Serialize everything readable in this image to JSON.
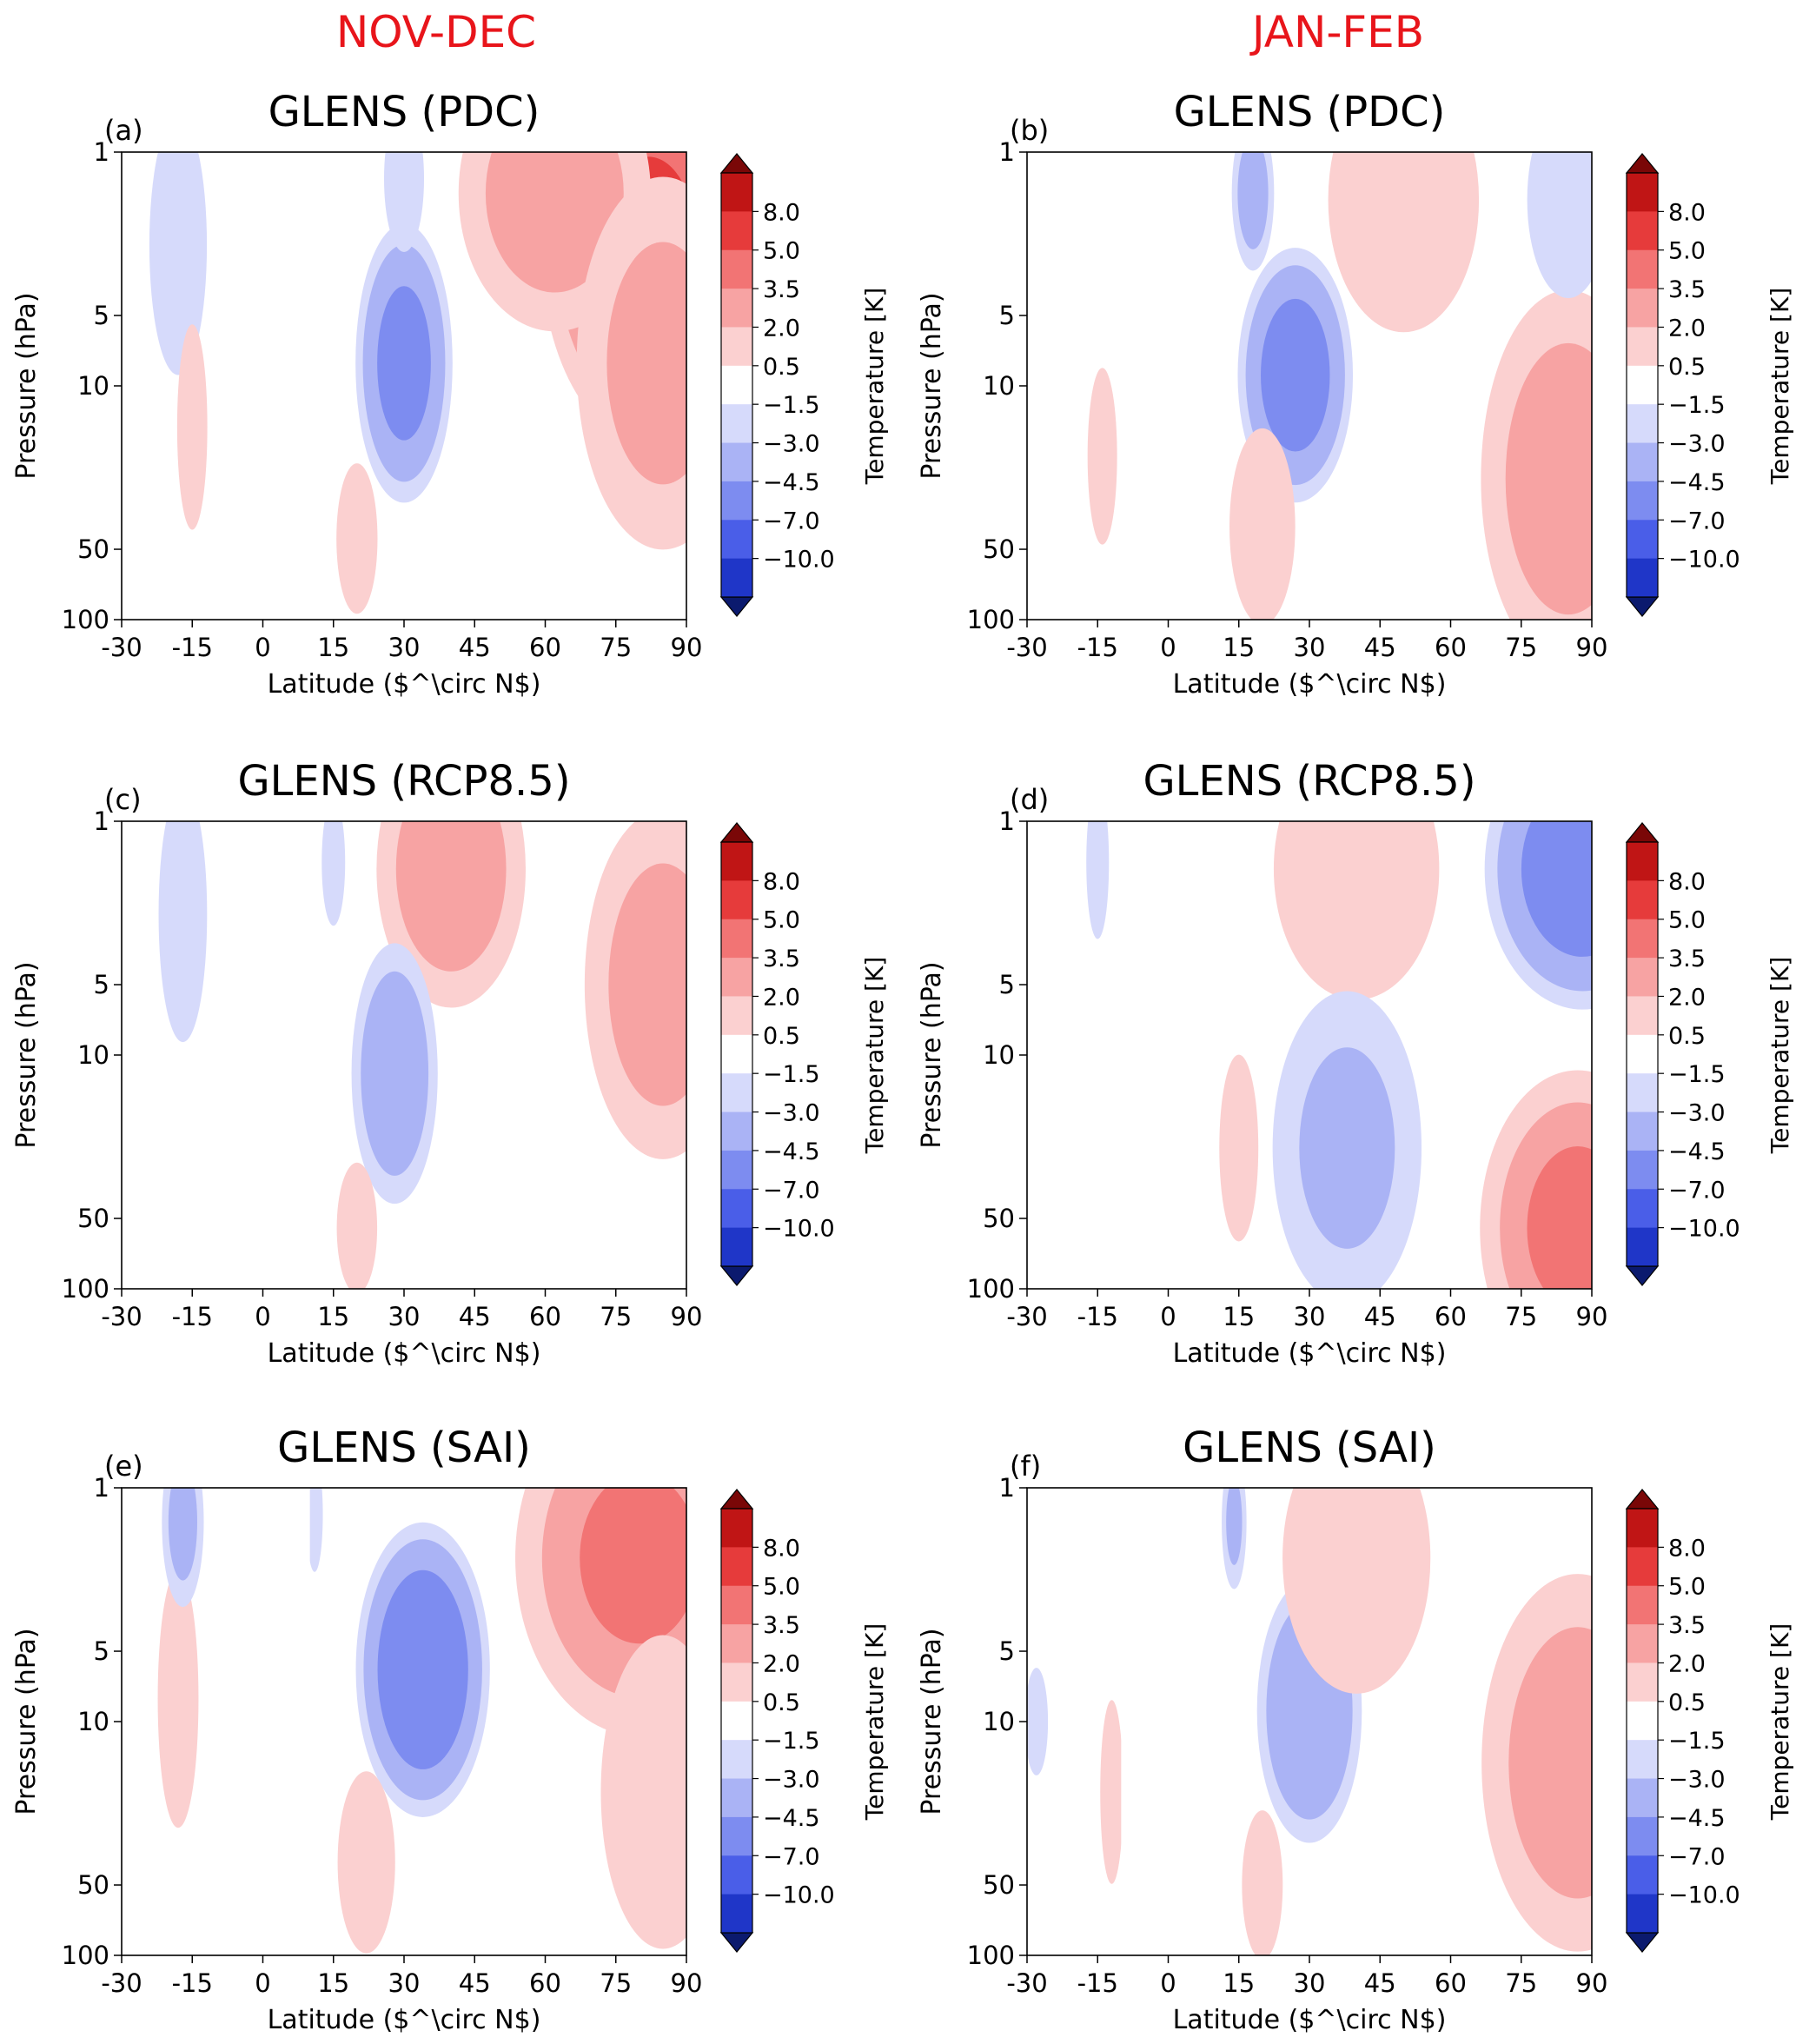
{
  "column_titles": [
    "NOV-DEC",
    "JAN-FEB"
  ],
  "colorbar": {
    "label": "Temperature [K]",
    "ticks": [
      "8.0",
      "5.0",
      "3.5",
      "2.0",
      "0.5",
      "−1.5",
      "−3.0",
      "−4.5",
      "−7.0",
      "−10.0"
    ],
    "colors": [
      "#0b1a6e",
      "#1f36c8",
      "#4a5ee8",
      "#7d8cf0",
      "#aab3f5",
      "#d6dafb",
      "#ffffff",
      "#fbd0d0",
      "#f7a3a3",
      "#f27474",
      "#e63b3b",
      "#c01515",
      "#7a0707"
    ]
  },
  "chart_data": [
    {
      "panel": "(a)",
      "title": "GLENS (PDC)",
      "type": "heatmap",
      "xlabel": "Latitude ($^\\circ N$)",
      "ylabel": "Pressure (hPa)",
      "x_ticks": [
        "-30",
        "-15",
        "0",
        "15",
        "30",
        "45",
        "60",
        "75",
        "90"
      ],
      "y_ticks": [
        "1",
        "5",
        "10",
        "50",
        "100"
      ],
      "xlim": [
        -30,
        90
      ],
      "ylim": [
        100,
        1
      ],
      "yscale": "log",
      "features": [
        {
          "kind": "anomaly",
          "lat": 82,
          "p": 2.5,
          "value": 5.5,
          "rx": 24,
          "ry": 2.6
        },
        {
          "kind": "anomaly",
          "lat": 62,
          "p": 1.5,
          "value": 3.0,
          "rx": 22,
          "ry": 1.5
        },
        {
          "kind": "anomaly",
          "lat": 85,
          "p": 8,
          "value": 2.5,
          "rx": 20,
          "ry": 2.5
        },
        {
          "kind": "anomaly",
          "lat": 30,
          "p": 8,
          "value": -3.5,
          "rx": 11,
          "ry": 1.5
        },
        {
          "kind": "anomaly",
          "lat": -18,
          "p": 2.5,
          "value": -1.5,
          "rx": 7,
          "ry": 1.5
        },
        {
          "kind": "anomaly",
          "lat": 20,
          "p": 45,
          "value": 1.5,
          "rx": 5,
          "ry": 0.7
        },
        {
          "kind": "anomaly",
          "lat": -15,
          "p": 15,
          "value": 0.8,
          "rx": 4,
          "ry": 1.2
        },
        {
          "kind": "anomaly",
          "lat": 30,
          "p": 1.3,
          "value": -1.2,
          "rx": 5,
          "ry": 0.7
        }
      ]
    },
    {
      "panel": "(b)",
      "title": "GLENS (PDC)",
      "type": "heatmap",
      "xlabel": "Latitude ($^\\circ N$)",
      "ylabel": "Pressure (hPa)",
      "x_ticks": [
        "-30",
        "-15",
        "0",
        "15",
        "30",
        "45",
        "60",
        "75",
        "90"
      ],
      "y_ticks": [
        "1",
        "5",
        "10",
        "50",
        "100"
      ],
      "xlim": [
        -30,
        90
      ],
      "ylim": [
        100,
        1
      ],
      "yscale": "log",
      "features": [
        {
          "kind": "anomaly",
          "lat": 27,
          "p": 9,
          "value": -3.8,
          "rx": 13,
          "ry": 1.3
        },
        {
          "kind": "anomaly",
          "lat": 85,
          "p": 25,
          "value": 3.0,
          "rx": 20,
          "ry": 2.5
        },
        {
          "kind": "anomaly",
          "lat": 50,
          "p": 1.6,
          "value": 1.8,
          "rx": 18,
          "ry": 1.5
        },
        {
          "kind": "anomaly",
          "lat": 85,
          "p": 1.6,
          "value": -1.5,
          "rx": 10,
          "ry": 1.0
        },
        {
          "kind": "anomaly",
          "lat": 18,
          "p": 1.5,
          "value": -2.0,
          "rx": 5,
          "ry": 0.7
        },
        {
          "kind": "anomaly",
          "lat": 20,
          "p": 40,
          "value": 1.5,
          "rx": 8,
          "ry": 1.0
        },
        {
          "kind": "anomaly",
          "lat": -14,
          "p": 20,
          "value": 0.7,
          "rx": 4,
          "ry": 1.0
        }
      ]
    },
    {
      "panel": "(c)",
      "title": "GLENS (RCP8.5)",
      "type": "heatmap",
      "xlabel": "Latitude ($^\\circ N$)",
      "ylabel": "Pressure (hPa)",
      "x_ticks": [
        "-30",
        "-15",
        "0",
        "15",
        "30",
        "45",
        "60",
        "75",
        "90"
      ],
      "y_ticks": [
        "1",
        "5",
        "10",
        "50",
        "100"
      ],
      "xlim": [
        -30,
        90
      ],
      "ylim": [
        100,
        1
      ],
      "yscale": "log",
      "features": [
        {
          "kind": "anomaly",
          "lat": 85,
          "p": 5,
          "value": 2.8,
          "rx": 18,
          "ry": 2.2
        },
        {
          "kind": "anomaly",
          "lat": 40,
          "p": 1.6,
          "value": 3.2,
          "rx": 17,
          "ry": 1.5
        },
        {
          "kind": "anomaly",
          "lat": 28,
          "p": 12,
          "value": -2.5,
          "rx": 10,
          "ry": 1.4
        },
        {
          "kind": "anomaly",
          "lat": -17,
          "p": 2.5,
          "value": -1.3,
          "rx": 6,
          "ry": 1.5
        },
        {
          "kind": "anomaly",
          "lat": 20,
          "p": 55,
          "value": 1.3,
          "rx": 5,
          "ry": 0.6
        },
        {
          "kind": "anomaly",
          "lat": 15,
          "p": 1.5,
          "value": -1.0,
          "rx": 3,
          "ry": 0.6
        }
      ]
    },
    {
      "panel": "(d)",
      "title": "GLENS (RCP8.5)",
      "type": "heatmap",
      "xlabel": "Latitude ($^\\circ N$)",
      "ylabel": "Pressure (hPa)",
      "x_ticks": [
        "-30",
        "-15",
        "0",
        "15",
        "30",
        "45",
        "60",
        "75",
        "90"
      ],
      "y_ticks": [
        "1",
        "5",
        "10",
        "50",
        "100"
      ],
      "xlim": [
        -30,
        90
      ],
      "ylim": [
        100,
        1
      ],
      "yscale": "log",
      "features": [
        {
          "kind": "anomaly",
          "lat": 88,
          "p": 1.6,
          "value": -4.0,
          "rx": 22,
          "ry": 1.5
        },
        {
          "kind": "anomaly",
          "lat": 87,
          "p": 55,
          "value": 4.0,
          "rx": 22,
          "ry": 1.8
        },
        {
          "kind": "anomaly",
          "lat": 40,
          "p": 1.6,
          "value": 1.6,
          "rx": 20,
          "ry": 1.5
        },
        {
          "kind": "anomaly",
          "lat": 38,
          "p": 25,
          "value": -1.6,
          "rx": 18,
          "ry": 2.0
        },
        {
          "kind": "anomaly",
          "lat": 15,
          "p": 25,
          "value": 1.0,
          "rx": 5,
          "ry": 1.0
        },
        {
          "kind": "anomaly",
          "lat": -15,
          "p": 1.5,
          "value": -0.8,
          "rx": 3,
          "ry": 0.8
        }
      ]
    },
    {
      "panel": "(e)",
      "title": "GLENS (SAI)",
      "type": "heatmap",
      "xlabel": "Latitude ($^\\circ N$)",
      "ylabel": "Pressure (hPa)",
      "x_ticks": [
        "-30",
        "-15",
        "0",
        "15",
        "30",
        "45",
        "60",
        "75",
        "90"
      ],
      "y_ticks": [
        "1",
        "5",
        "10",
        "50",
        "100"
      ],
      "xlim": [
        -30,
        90
      ],
      "ylim": [
        100,
        1
      ],
      "yscale": "log",
      "features": [
        {
          "kind": "anomaly",
          "lat": 34,
          "p": 6,
          "value": -4.5,
          "rx": 15,
          "ry": 1.6
        },
        {
          "kind": "anomaly",
          "lat": 80,
          "p": 2,
          "value": 3.8,
          "rx": 28,
          "ry": 2.2
        },
        {
          "kind": "anomaly",
          "lat": 85,
          "p": 20,
          "value": 1.6,
          "rx": 15,
          "ry": 2.0
        },
        {
          "kind": "anomaly",
          "lat": -18,
          "p": 8,
          "value": 1.4,
          "rx": 5,
          "ry": 1.5
        },
        {
          "kind": "anomaly",
          "lat": 22,
          "p": 40,
          "value": 1.5,
          "rx": 7,
          "ry": 0.9
        },
        {
          "kind": "anomaly",
          "lat": -17,
          "p": 1.4,
          "value": -1.8,
          "rx": 5,
          "ry": 0.8
        },
        {
          "kind": "anomaly",
          "lat": 11,
          "p": 1.3,
          "value": -1.5,
          "rx": 2,
          "ry": 0.5
        }
      ]
    },
    {
      "panel": "(f)",
      "title": "GLENS (SAI)",
      "type": "heatmap",
      "xlabel": "Latitude ($^\\circ N$)",
      "ylabel": "Pressure (hPa)",
      "x_ticks": [
        "-30",
        "-15",
        "0",
        "15",
        "30",
        "45",
        "60",
        "75",
        "90"
      ],
      "y_ticks": [
        "1",
        "5",
        "10",
        "50",
        "100"
      ],
      "xlim": [
        -30,
        90
      ],
      "ylim": [
        100,
        1
      ],
      "yscale": "log",
      "features": [
        {
          "kind": "anomaly",
          "lat": 30,
          "p": 9,
          "value": -3.0,
          "rx": 12,
          "ry": 1.4
        },
        {
          "kind": "anomaly",
          "lat": 87,
          "p": 15,
          "value": 3.0,
          "rx": 22,
          "ry": 2.5
        },
        {
          "kind": "anomaly",
          "lat": 40,
          "p": 2,
          "value": 1.5,
          "rx": 18,
          "ry": 1.6
        },
        {
          "kind": "anomaly",
          "lat": 20,
          "p": 50,
          "value": 1.4,
          "rx": 5,
          "ry": 0.7
        },
        {
          "kind": "anomaly",
          "lat": 14,
          "p": 1.4,
          "value": -1.6,
          "rx": 3,
          "ry": 0.6
        },
        {
          "kind": "anomaly",
          "lat": -12,
          "p": 20,
          "value": 0.9,
          "rx": 3,
          "ry": 1.0
        },
        {
          "kind": "anomaly",
          "lat": -28,
          "p": 10,
          "value": -0.9,
          "rx": 3,
          "ry": 0.5
        }
      ]
    }
  ]
}
